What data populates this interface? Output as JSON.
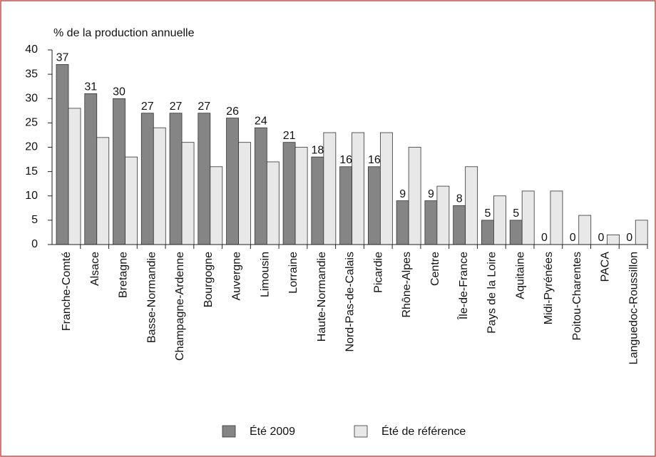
{
  "chart_data": {
    "type": "bar",
    "y_label": "% de la production annuelle",
    "categories": [
      "Franche-Comté",
      "Alsace",
      "Bretagne",
      "Basse-Normandie",
      "Champagne-Ardenne",
      "Bourgogne",
      "Auvergne",
      "Limousin",
      "Lorraine",
      "Haute-Normandie",
      "Nord-Pas-de-Calais",
      "Picardie",
      "Rhône-Alpes",
      "Centre",
      "Île-de-France",
      "Pays de la Loire",
      "Aquitaine",
      "Midi-Pyrénées",
      "Poitou-Charentes",
      "PACA",
      "Languedoc-Roussillon"
    ],
    "series": [
      {
        "name": "Été 2009",
        "color": "#858585",
        "values": [
          37,
          31,
          30,
          27,
          27,
          27,
          26,
          24,
          21,
          18,
          16,
          16,
          9,
          9,
          8,
          5,
          5,
          0,
          0,
          0,
          0
        ],
        "data_labels": true
      },
      {
        "name": "Été de référence",
        "color": "#e8e8e8",
        "values": [
          28,
          22,
          18,
          24,
          21,
          16,
          21,
          17,
          20,
          23,
          23,
          23,
          20,
          12,
          16,
          10,
          11,
          11,
          6,
          2,
          5
        ],
        "data_labels": false
      }
    ],
    "ylim": [
      0,
      40
    ],
    "yticks": [
      0,
      5,
      10,
      15,
      20,
      25,
      30,
      35,
      40
    ],
    "grid": false,
    "legend": "bottom"
  }
}
